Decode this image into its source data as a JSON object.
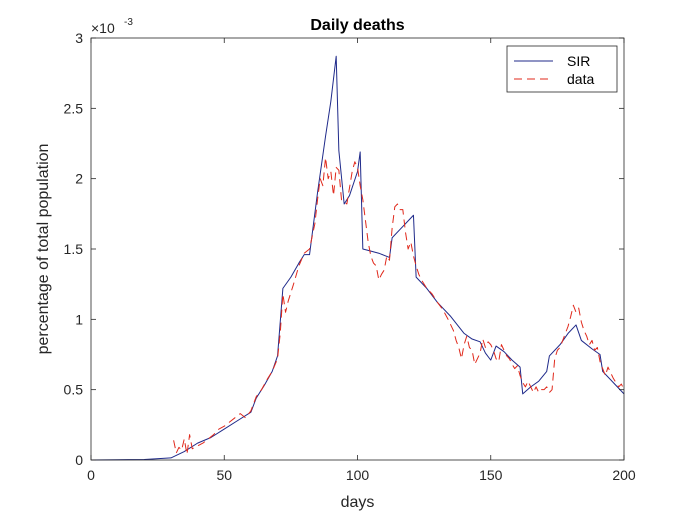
{
  "chart_data": {
    "type": "line",
    "title": "Daily deaths",
    "xlabel": "days",
    "ylabel": "percentage of total population",
    "y_multiplier": {
      "base": "×10",
      "exponent": "-3"
    },
    "xlim": [
      0,
      200
    ],
    "ylim": [
      0,
      3
    ],
    "xticks": [
      0,
      50,
      100,
      150,
      200
    ],
    "xtick_labels": [
      "0",
      "50",
      "100",
      "150",
      "200"
    ],
    "yticks": [
      0,
      0.5,
      1,
      1.5,
      2,
      2.5,
      3
    ],
    "ytick_labels": [
      "0",
      "0.5",
      "1",
      "1.5",
      "2",
      "2.5",
      "3"
    ],
    "grid": false,
    "legend_position": "top-right",
    "colors": {
      "sir": "#1f2a8a",
      "data": "#e0281b",
      "axes": "#262626"
    },
    "series": [
      {
        "name": "SIR",
        "style": "solid",
        "x": [
          0,
          10,
          20,
          30,
          35,
          40,
          45,
          50,
          55,
          60,
          62,
          65,
          68,
          70,
          72,
          75,
          78,
          80,
          82,
          85,
          88,
          90,
          92,
          93,
          95,
          97,
          100,
          101,
          102,
          104,
          108,
          112,
          113,
          116,
          119,
          121,
          122,
          126,
          130,
          135,
          140,
          143,
          146,
          148,
          150,
          152,
          155,
          158,
          161,
          162,
          165,
          168,
          171,
          172,
          176,
          179,
          182,
          184,
          188,
          191,
          192,
          196,
          200
        ],
        "y": [
          0.0,
          0.002,
          0.004,
          0.015,
          0.06,
          0.12,
          0.16,
          0.22,
          0.28,
          0.34,
          0.44,
          0.53,
          0.63,
          0.74,
          1.22,
          1.3,
          1.4,
          1.46,
          1.46,
          1.9,
          2.3,
          2.55,
          2.87,
          2.2,
          1.82,
          1.88,
          2.05,
          2.19,
          1.5,
          1.49,
          1.47,
          1.44,
          1.58,
          1.64,
          1.7,
          1.74,
          1.3,
          1.22,
          1.12,
          1.02,
          0.9,
          0.86,
          0.84,
          0.76,
          0.71,
          0.81,
          0.77,
          0.71,
          0.66,
          0.47,
          0.52,
          0.56,
          0.63,
          0.74,
          0.82,
          0.9,
          0.96,
          0.85,
          0.79,
          0.75,
          0.63,
          0.55,
          0.47
        ]
      },
      {
        "name": "data",
        "style": "dashed",
        "x": [
          31,
          32,
          33,
          34,
          35,
          36,
          37,
          38,
          40,
          42,
          44,
          46,
          48,
          50,
          52,
          54,
          56,
          58,
          60,
          62,
          64,
          66,
          68,
          70,
          71,
          72,
          73,
          74,
          76,
          78,
          80,
          82,
          84,
          85,
          86,
          87,
          88,
          89,
          90,
          91,
          92,
          93,
          94,
          96,
          98,
          99,
          100,
          101,
          102,
          103,
          104,
          105,
          106,
          107,
          108,
          109,
          110,
          111,
          112,
          113,
          114,
          115,
          116,
          117,
          118,
          119,
          120,
          121,
          122,
          123,
          124,
          126,
          128,
          130,
          132,
          134,
          136,
          137,
          138,
          139,
          140,
          141,
          142,
          143,
          144,
          145,
          146,
          147,
          148,
          149,
          150,
          151,
          152,
          153,
          154,
          155,
          156,
          157,
          158,
          159,
          160,
          161,
          162,
          163,
          164,
          165,
          166,
          167,
          168,
          169,
          170,
          171,
          172,
          173,
          174,
          175,
          176,
          177,
          178,
          179,
          180,
          181,
          182,
          183,
          184,
          185,
          186,
          187,
          188,
          189,
          190,
          191,
          192,
          193,
          194,
          195,
          196,
          197,
          198,
          199,
          200
        ],
        "y": [
          0.14,
          0.05,
          0.09,
          0.07,
          0.15,
          0.04,
          0.18,
          0.08,
          0.1,
          0.12,
          0.15,
          0.18,
          0.22,
          0.24,
          0.27,
          0.3,
          0.33,
          0.3,
          0.35,
          0.45,
          0.5,
          0.57,
          0.63,
          0.72,
          0.9,
          1.18,
          1.05,
          1.13,
          1.25,
          1.38,
          1.47,
          1.5,
          1.68,
          1.85,
          2.0,
          1.95,
          2.15,
          2.0,
          2.05,
          1.88,
          2.08,
          2.06,
          1.85,
          1.82,
          2.05,
          2.12,
          2.08,
          1.95,
          1.85,
          1.7,
          1.55,
          1.45,
          1.4,
          1.38,
          1.28,
          1.32,
          1.35,
          1.45,
          1.42,
          1.65,
          1.8,
          1.82,
          1.78,
          1.78,
          1.62,
          1.5,
          1.55,
          1.45,
          1.38,
          1.32,
          1.28,
          1.22,
          1.18,
          1.12,
          1.07,
          1.0,
          0.92,
          0.85,
          0.8,
          0.72,
          0.82,
          0.88,
          0.8,
          0.78,
          0.68,
          0.72,
          0.76,
          0.86,
          0.8,
          0.84,
          0.82,
          0.78,
          0.72,
          0.7,
          0.82,
          0.78,
          0.74,
          0.72,
          0.68,
          0.65,
          0.67,
          0.6,
          0.55,
          0.52,
          0.56,
          0.52,
          0.48,
          0.52,
          0.48,
          0.5,
          0.5,
          0.52,
          0.48,
          0.5,
          0.72,
          0.78,
          0.8,
          0.85,
          0.9,
          0.95,
          1.02,
          1.1,
          1.05,
          1.08,
          0.98,
          0.92,
          0.88,
          0.82,
          0.85,
          0.78,
          0.8,
          0.7,
          0.65,
          0.6,
          0.66,
          0.62,
          0.58,
          0.55,
          0.52,
          0.54,
          0.5
        ]
      }
    ]
  }
}
